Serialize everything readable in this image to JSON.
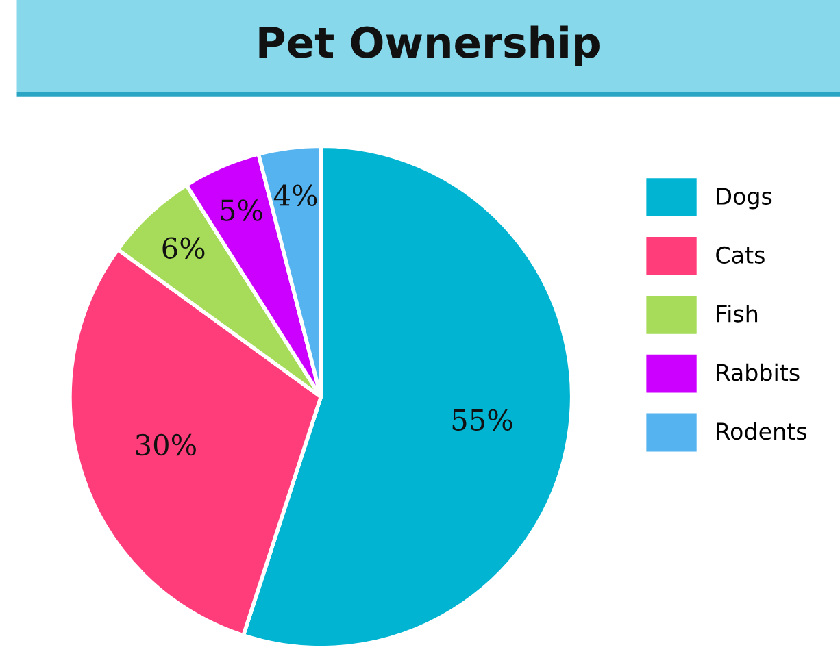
{
  "chart_data": {
    "type": "pie",
    "title": "Pet Ownership",
    "categories": [
      "Dogs",
      "Cats",
      "Fish",
      "Rabbits",
      "Rodents"
    ],
    "values": [
      55,
      30,
      6,
      5,
      4
    ],
    "colors": [
      "#00b4d2",
      "#ff3d7a",
      "#a6dc5a",
      "#cc00ff",
      "#55b4f0"
    ],
    "value_labels": [
      "55%",
      "30%",
      "6%",
      "5%",
      "4%"
    ],
    "legend": "right"
  }
}
